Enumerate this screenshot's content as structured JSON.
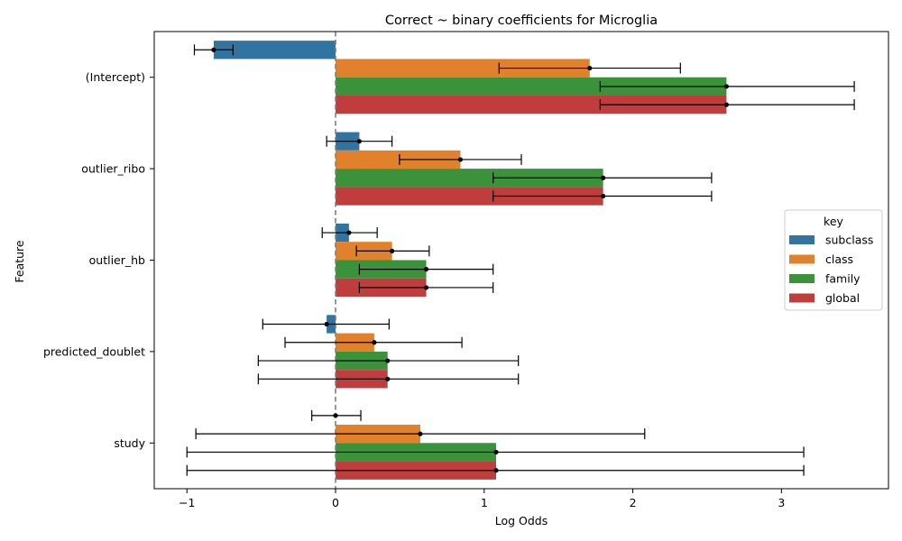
{
  "chart_data": {
    "type": "bar",
    "orientation": "horizontal",
    "title": "Correct ~ binary coefficients for Microglia",
    "xlabel": "Log Odds",
    "ylabel": "Feature",
    "xlim": [
      -1.22,
      3.72
    ],
    "xticks": [
      -1,
      0,
      1,
      2,
      3
    ],
    "reference_line": 0,
    "categories": [
      "(Intercept)",
      "outlier_ribo",
      "outlier_hb",
      "predicted_doublet",
      "study"
    ],
    "legend": {
      "title": "key",
      "position": "right"
    },
    "series": [
      {
        "name": "subclass",
        "color": "#3274a1",
        "values": [
          -0.82,
          0.16,
          0.09,
          -0.06,
          0.0
        ],
        "ci_low": [
          -0.95,
          -0.06,
          -0.09,
          -0.49,
          -0.16
        ],
        "ci_high": [
          -0.69,
          0.38,
          0.28,
          0.36,
          0.17
        ]
      },
      {
        "name": "class",
        "color": "#e1812c",
        "values": [
          1.71,
          0.84,
          0.38,
          0.26,
          0.57
        ],
        "ci_low": [
          1.1,
          0.43,
          0.14,
          -0.34,
          -0.94
        ],
        "ci_high": [
          2.32,
          1.25,
          0.63,
          0.85,
          2.08
        ]
      },
      {
        "name": "family",
        "color": "#3a923a",
        "values": [
          2.63,
          1.8,
          0.61,
          0.35,
          1.08
        ],
        "ci_low": [
          1.78,
          1.06,
          0.16,
          -0.52,
          -1.0
        ],
        "ci_high": [
          3.49,
          2.53,
          1.06,
          1.23,
          3.15
        ]
      },
      {
        "name": "global",
        "color": "#c03d3e",
        "values": [
          2.63,
          1.8,
          0.61,
          0.35,
          1.08
        ],
        "ci_low": [
          1.78,
          1.06,
          0.16,
          -0.52,
          -1.0
        ],
        "ci_high": [
          3.49,
          2.53,
          1.06,
          1.23,
          3.15
        ]
      }
    ]
  }
}
